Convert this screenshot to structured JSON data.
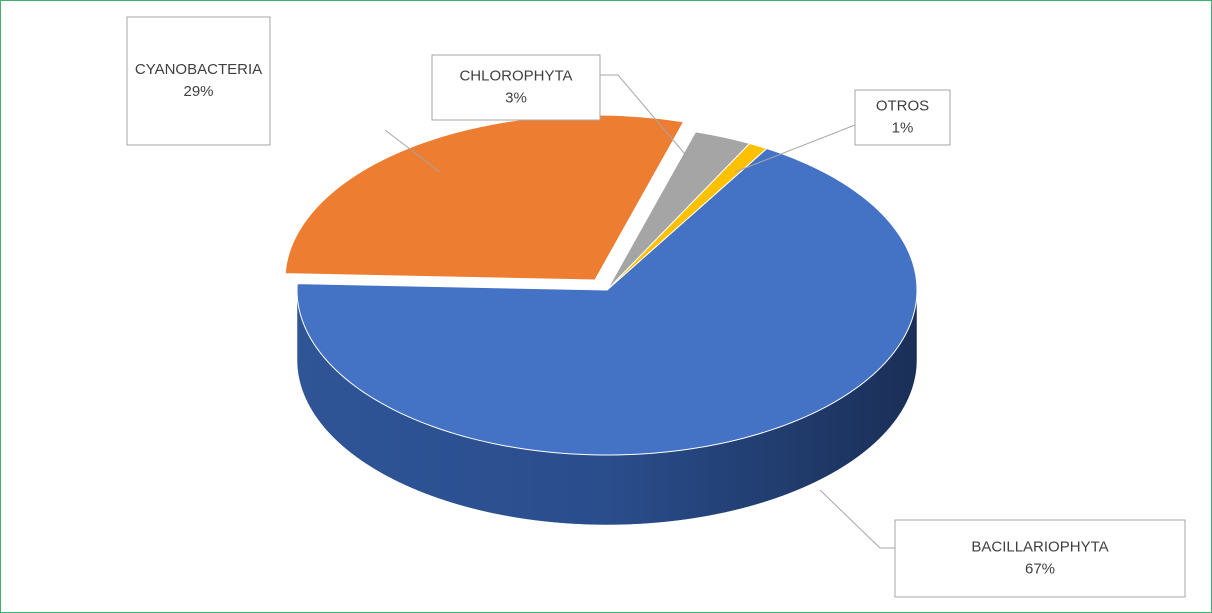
{
  "chart_data": {
    "type": "pie",
    "categories": [
      "BACILLARIOPHYTA",
      "CYANOBACTERIA",
      "CHLOROPHYTA",
      "OTROS"
    ],
    "values": [
      67,
      29,
      3,
      1
    ],
    "value_labels": [
      "67%",
      "29%",
      "3%",
      "1%"
    ],
    "colors": [
      "#4472c4",
      "#ed7d31",
      "#a5a5a5",
      "#ffc000"
    ]
  }
}
